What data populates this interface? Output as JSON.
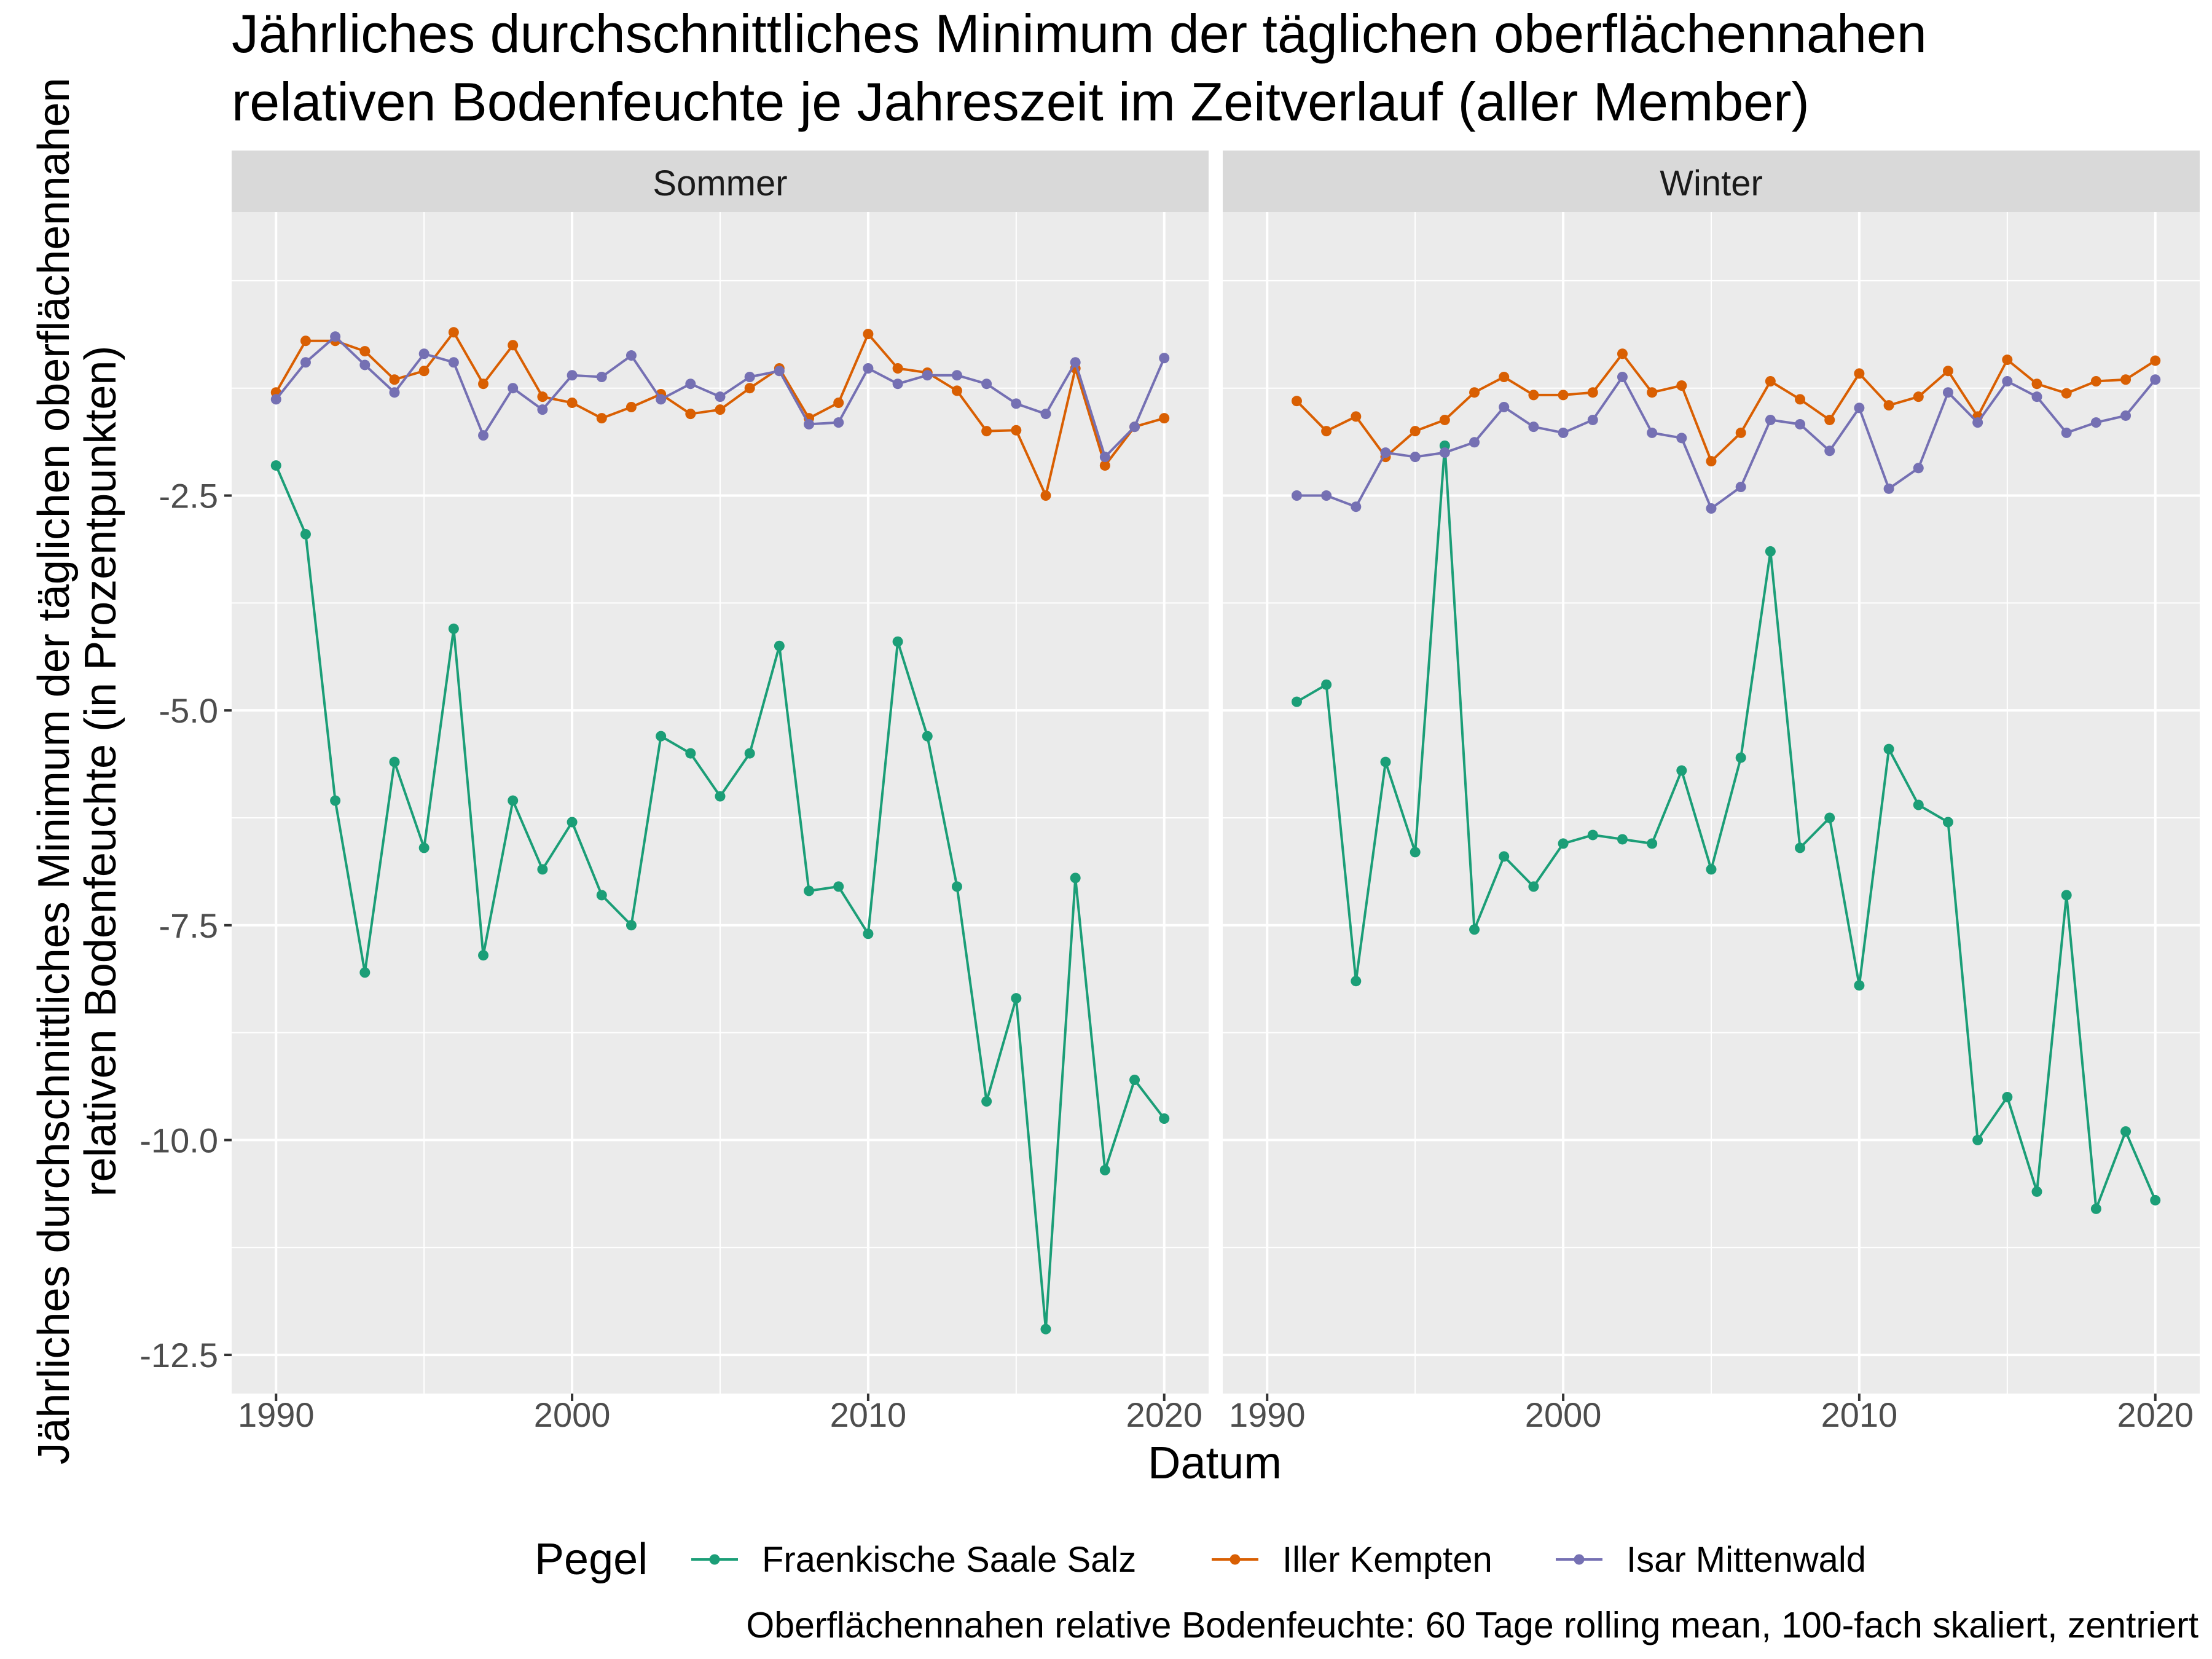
{
  "title_line1": "Jährliches durchschnittliches Minimum der täglichen oberflächennahen",
  "title_line2": "relativen Bodenfeuchte je Jahreszeit im Zeitverlauf (aller Member)",
  "ylabel_line1": "Jährliches durchschnittliches Minimum der täglichen oberflächennahen",
  "ylabel_line2": "relativen Bodenfeuchte (in Prozentpunkten)",
  "xlabel": "Datum",
  "legend_title": "Pegel",
  "caption": "Oberflächennahen relative Bodenfeuchte: 60 Tage rolling mean, 100-fach skaliert, zentriert",
  "colors": {
    "panel_bg": "#EBEBEB",
    "strip_bg": "#D9D9D9",
    "grid": "#FFFFFF",
    "text": "#1A1A1A",
    "tick_text": "#4D4D4D"
  },
  "chart_data": {
    "type": "line",
    "facet_by": "Jahreszeit",
    "x_ticks": [
      1990,
      2000,
      2010,
      2020
    ],
    "x_range": [
      1988.5,
      2021.5
    ],
    "y_ticks": [
      -2.5,
      -5.0,
      -7.5,
      -10.0,
      -12.5
    ],
    "y_tick_labels": [
      "-2.5",
      "-5.0",
      "-7.5",
      "-10.0",
      "-12.5"
    ],
    "y_range": [
      -12.95,
      0.8
    ],
    "grid": true,
    "legend_position": "bottom",
    "series_meta": [
      {
        "name": "Fraenkische Saale Salz",
        "color": "#1B9E77"
      },
      {
        "name": "Iller Kempten",
        "color": "#D95F02"
      },
      {
        "name": "Isar Mittenwald",
        "color": "#7570B3"
      }
    ],
    "panels": [
      {
        "label": "Sommer",
        "x": [
          1990,
          1991,
          1992,
          1993,
          1994,
          1995,
          1996,
          1997,
          1998,
          1999,
          2000,
          2001,
          2002,
          2003,
          2004,
          2005,
          2006,
          2007,
          2008,
          2009,
          2010,
          2011,
          2012,
          2013,
          2014,
          2015,
          2016,
          2017,
          2018,
          2019,
          2020
        ],
        "series": [
          {
            "name": "Fraenkische Saale Salz",
            "values": [
              -2.15,
              -2.95,
              -6.05,
              -8.05,
              -5.6,
              -6.6,
              -4.05,
              -7.85,
              -6.05,
              -6.85,
              -6.3,
              -7.15,
              -7.5,
              -5.3,
              -5.5,
              -6.0,
              -5.5,
              -4.25,
              -7.1,
              -7.05,
              -7.6,
              -4.2,
              -5.3,
              -7.05,
              -9.55,
              -8.35,
              -12.2,
              -6.95,
              -10.35,
              -9.3,
              -9.75
            ]
          },
          {
            "name": "Iller Kempten",
            "values": [
              -1.3,
              -0.7,
              -0.7,
              -0.82,
              -1.15,
              -1.05,
              -0.6,
              -1.2,
              -0.75,
              -1.35,
              -1.42,
              -1.6,
              -1.47,
              -1.32,
              -1.55,
              -1.5,
              -1.25,
              -1.02,
              -1.6,
              -1.42,
              -0.62,
              -1.02,
              -1.07,
              -1.28,
              -1.75,
              -1.74,
              -2.5,
              -1.02,
              -2.15,
              -1.7,
              -1.6
            ]
          },
          {
            "name": "Isar Mittenwald",
            "values": [
              -1.38,
              -0.95,
              -0.65,
              -0.98,
              -1.3,
              -0.85,
              -0.95,
              -1.8,
              -1.25,
              -1.5,
              -1.1,
              -1.12,
              -0.87,
              -1.38,
              -1.2,
              -1.35,
              -1.12,
              -1.05,
              -1.67,
              -1.65,
              -1.02,
              -1.2,
              -1.1,
              -1.1,
              -1.2,
              -1.43,
              -1.55,
              -0.95,
              -2.05,
              -1.7,
              -0.9
            ]
          }
        ]
      },
      {
        "label": "Winter",
        "x": [
          1991,
          1992,
          1993,
          1994,
          1995,
          1996,
          1997,
          1998,
          1999,
          2000,
          2001,
          2002,
          2003,
          2004,
          2005,
          2006,
          2007,
          2008,
          2009,
          2010,
          2011,
          2012,
          2013,
          2014,
          2015,
          2016,
          2017,
          2018,
          2019,
          2020
        ],
        "series": [
          {
            "name": "Fraenkische Saale Salz",
            "values": [
              -4.9,
              -4.7,
              -8.15,
              -5.6,
              -6.65,
              -1.92,
              -7.55,
              -6.7,
              -7.05,
              -6.55,
              -6.45,
              -6.5,
              -6.55,
              -5.7,
              -6.85,
              -5.55,
              -3.15,
              -6.6,
              -6.25,
              -8.2,
              -5.45,
              -6.1,
              -6.3,
              -10.0,
              -9.5,
              -10.6,
              -7.15,
              -10.8,
              -9.9,
              -10.7
            ]
          },
          {
            "name": "Iller Kempten",
            "values": [
              -1.4,
              -1.75,
              -1.58,
              -2.05,
              -1.75,
              -1.62,
              -1.3,
              -1.12,
              -1.33,
              -1.33,
              -1.3,
              -0.85,
              -1.3,
              -1.22,
              -2.1,
              -1.77,
              -1.17,
              -1.38,
              -1.62,
              -1.08,
              -1.45,
              -1.35,
              -1.05,
              -1.58,
              -0.92,
              -1.2,
              -1.31,
              -1.17,
              -1.15,
              -0.93
            ]
          },
          {
            "name": "Isar Mittenwald",
            "values": [
              -2.5,
              -2.5,
              -2.63,
              -2.0,
              -2.05,
              -2.0,
              -1.88,
              -1.47,
              -1.7,
              -1.77,
              -1.62,
              -1.12,
              -1.77,
              -1.83,
              -2.65,
              -2.4,
              -1.62,
              -1.67,
              -1.98,
              -1.48,
              -2.42,
              -2.18,
              -1.3,
              -1.65,
              -1.17,
              -1.35,
              -1.77,
              -1.65,
              -1.57,
              -1.15
            ]
          }
        ]
      }
    ]
  }
}
